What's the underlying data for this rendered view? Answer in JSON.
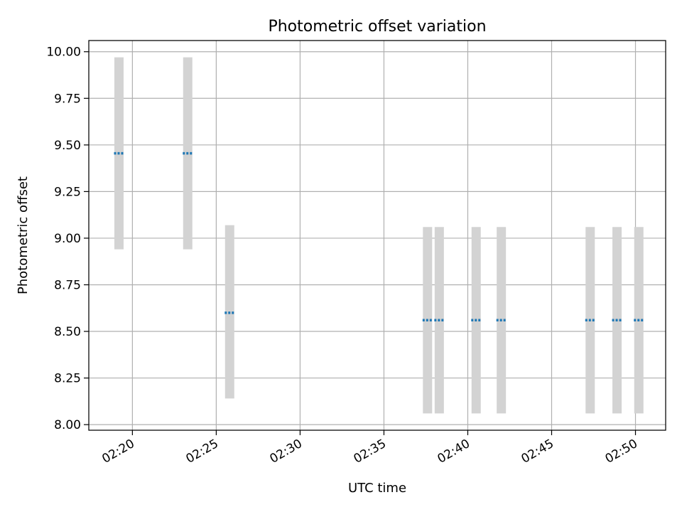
{
  "chart_data": {
    "type": "scatter",
    "title": "Photometric offset variation",
    "xlabel": "UTC time",
    "ylabel": "Photometric offset",
    "x_ticks": [
      "02:20",
      "02:25",
      "02:30",
      "02:35",
      "02:40",
      "02:45",
      "02:50"
    ],
    "y_ticks": [
      "8.00",
      "8.25",
      "8.50",
      "8.75",
      "9.00",
      "9.25",
      "9.50",
      "9.75",
      "10.00"
    ],
    "xlim": [
      "02:17:24",
      "02:51:48"
    ],
    "ylim": [
      7.97,
      10.06
    ],
    "grid": true,
    "points": [
      {
        "x": "02:19:12",
        "y": 9.455,
        "err_low": 8.94,
        "err_high": 9.97
      },
      {
        "x": "02:23:18",
        "y": 9.455,
        "err_low": 8.94,
        "err_high": 9.97
      },
      {
        "x": "02:25:48",
        "y": 8.6,
        "err_low": 8.14,
        "err_high": 9.07
      },
      {
        "x": "02:37:36",
        "y": 8.56,
        "err_low": 8.06,
        "err_high": 9.06
      },
      {
        "x": "02:38:18",
        "y": 8.56,
        "err_low": 8.06,
        "err_high": 9.06
      },
      {
        "x": "02:40:30",
        "y": 8.56,
        "err_low": 8.06,
        "err_high": 9.06
      },
      {
        "x": "02:42:00",
        "y": 8.56,
        "err_low": 8.06,
        "err_high": 9.06
      },
      {
        "x": "02:47:18",
        "y": 8.56,
        "err_low": 8.06,
        "err_high": 9.06
      },
      {
        "x": "02:48:54",
        "y": 8.56,
        "err_low": 8.06,
        "err_high": 9.06
      },
      {
        "x": "02:50:12",
        "y": 8.56,
        "err_low": 8.06,
        "err_high": 9.06
      }
    ],
    "colors": {
      "marker": "#1f77b4",
      "errorbar": "#d3d3d3",
      "grid": "#b0b0b0"
    }
  }
}
